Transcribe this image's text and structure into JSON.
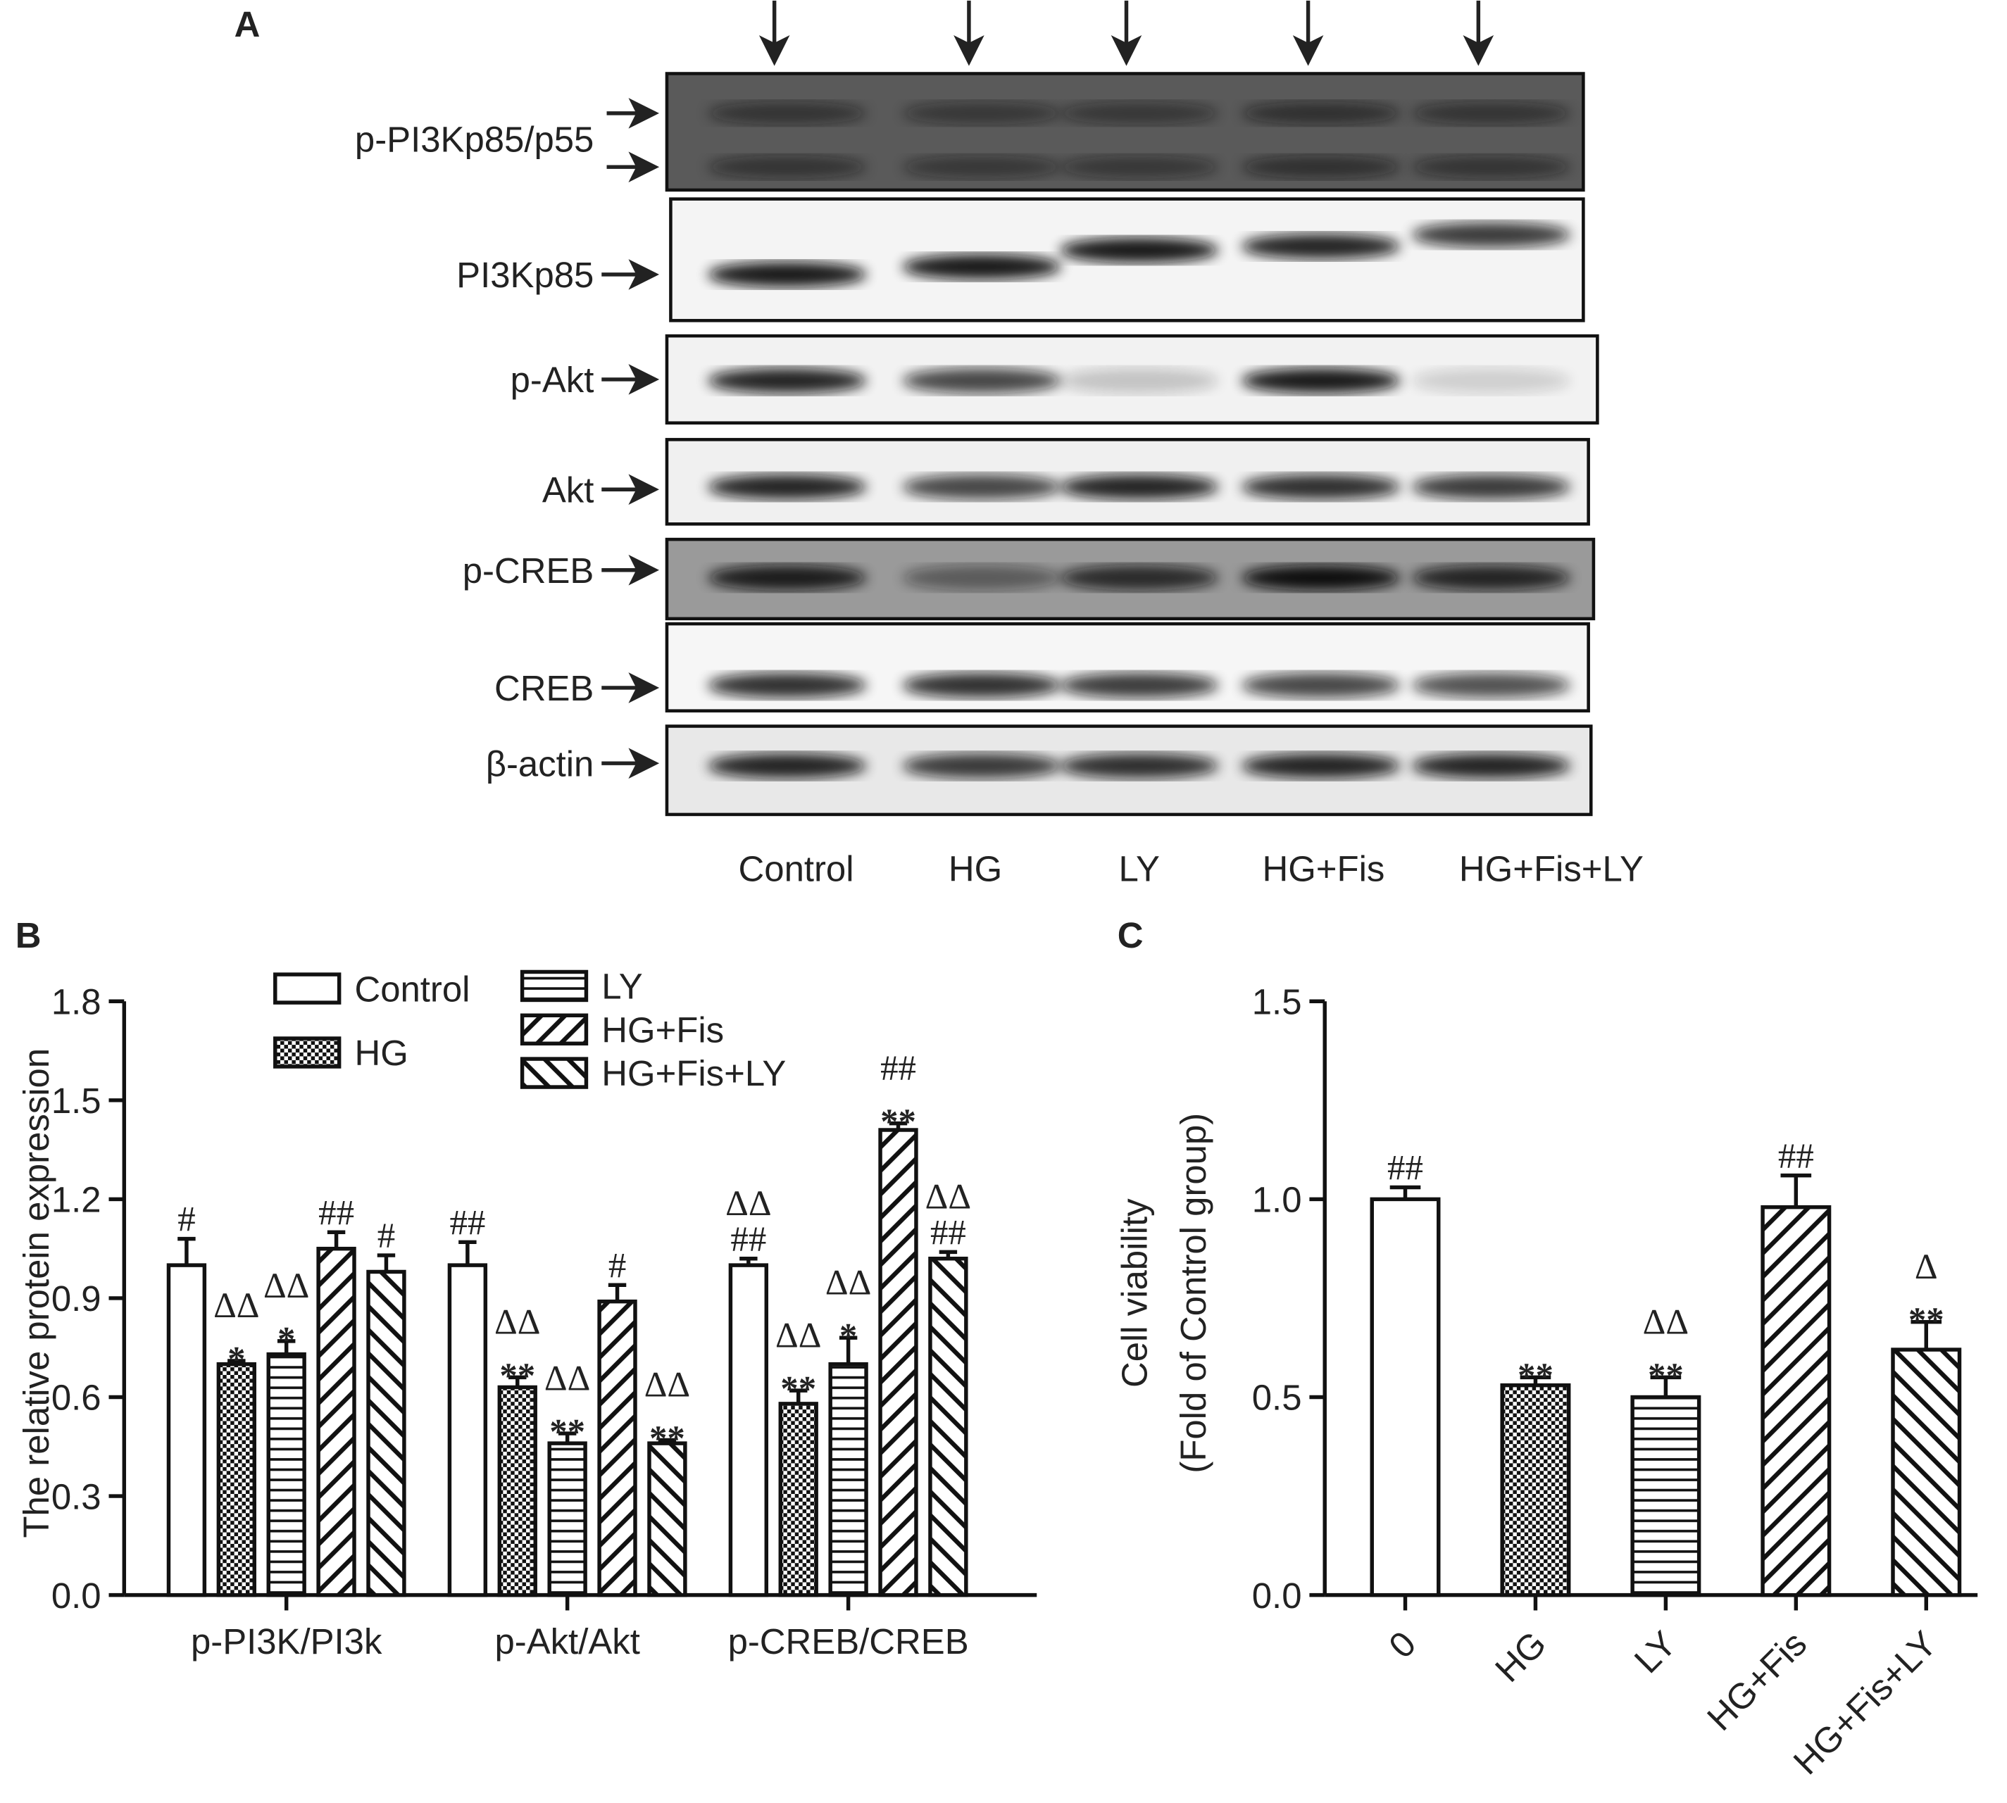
{
  "panel_a": {
    "label": "A",
    "proteins": [
      "p-PI3Kp85/p55",
      "PI3Kp85",
      "p-Akt",
      "Akt",
      "p-CREB",
      "CREB",
      "β-actin"
    ],
    "lanes": [
      "Control",
      "HG",
      "LY",
      "HG+Fis",
      "HG+Fis+LY"
    ]
  },
  "chart_data": [
    {
      "type": "grouped-bar",
      "panel_label": "B",
      "ylabel": "The relative protein expression",
      "categories": [
        "p-PI3K/PI3k",
        "p-Akt/Akt",
        "p-CREB/CREB"
      ],
      "ylim": [
        0,
        1.8
      ],
      "yticks": [
        {
          "value": 0,
          "label": "0.0"
        },
        0.3,
        0.6,
        0.9,
        1.2,
        1.5,
        1.8
      ],
      "series": [
        {
          "name": "Control",
          "pattern": "none",
          "values": [
            1.0,
            1.0,
            1.0
          ],
          "errors": [
            0.08,
            0.07,
            0.02
          ],
          "annotations": [
            [
              "#"
            ],
            [
              "##"
            ],
            [
              "ΔΔ",
              "##"
            ]
          ]
        },
        {
          "name": "HG",
          "pattern": "checker",
          "values": [
            0.7,
            0.63,
            0.58
          ],
          "errors": [
            0.01,
            0.03,
            0.04
          ],
          "annotations": [
            [
              "ΔΔ",
              "*"
            ],
            [
              "ΔΔ",
              "**"
            ],
            [
              "ΔΔ",
              "**"
            ]
          ]
        },
        {
          "name": "LY",
          "pattern": "hlines",
          "values": [
            0.73,
            0.46,
            0.7
          ],
          "errors": [
            0.04,
            0.03,
            0.08
          ],
          "annotations": [
            [
              "ΔΔ",
              "*"
            ],
            [
              "ΔΔ",
              "**"
            ],
            [
              "ΔΔ",
              "*"
            ]
          ]
        },
        {
          "name": "HG+Fis",
          "pattern": "diag-up",
          "values": [
            1.05,
            0.89,
            1.41
          ],
          "errors": [
            0.05,
            0.05,
            0.02
          ],
          "annotations": [
            [
              "##"
            ],
            [
              "#"
            ],
            [
              "##",
              "**"
            ]
          ]
        },
        {
          "name": "HG+Fis+LY",
          "pattern": "diag-down",
          "values": [
            0.98,
            0.46,
            1.02
          ],
          "errors": [
            0.05,
            0.01,
            0.02
          ],
          "annotations": [
            [
              "#"
            ],
            [
              "ΔΔ",
              "**"
            ],
            [
              "ΔΔ",
              "##"
            ]
          ]
        }
      ]
    },
    {
      "type": "bar",
      "panel_label": "C",
      "ylabel": [
        "Cell viability",
        "(Fold of Control group)"
      ],
      "categories": [
        "0",
        "HG",
        "LY",
        "HG+Fis",
        "HG+Fis+LY"
      ],
      "ylim": [
        0,
        1.5
      ],
      "yticks": [
        {
          "value": 0,
          "label": "0.0"
        },
        0.5,
        {
          "value": 1,
          "label": "1.0"
        },
        1.5
      ],
      "values": [
        1.0,
        0.53,
        0.5,
        0.98,
        0.62
      ],
      "errors": [
        0.03,
        0.02,
        0.05,
        0.08,
        0.07
      ],
      "patterns": [
        "none",
        "checker",
        "hlines",
        "diag-up",
        "diag-down"
      ],
      "annotations": [
        [
          "##"
        ],
        [
          "**"
        ],
        [
          "ΔΔ",
          "**"
        ],
        [
          "##"
        ],
        [
          "Δ",
          "**"
        ]
      ]
    }
  ]
}
